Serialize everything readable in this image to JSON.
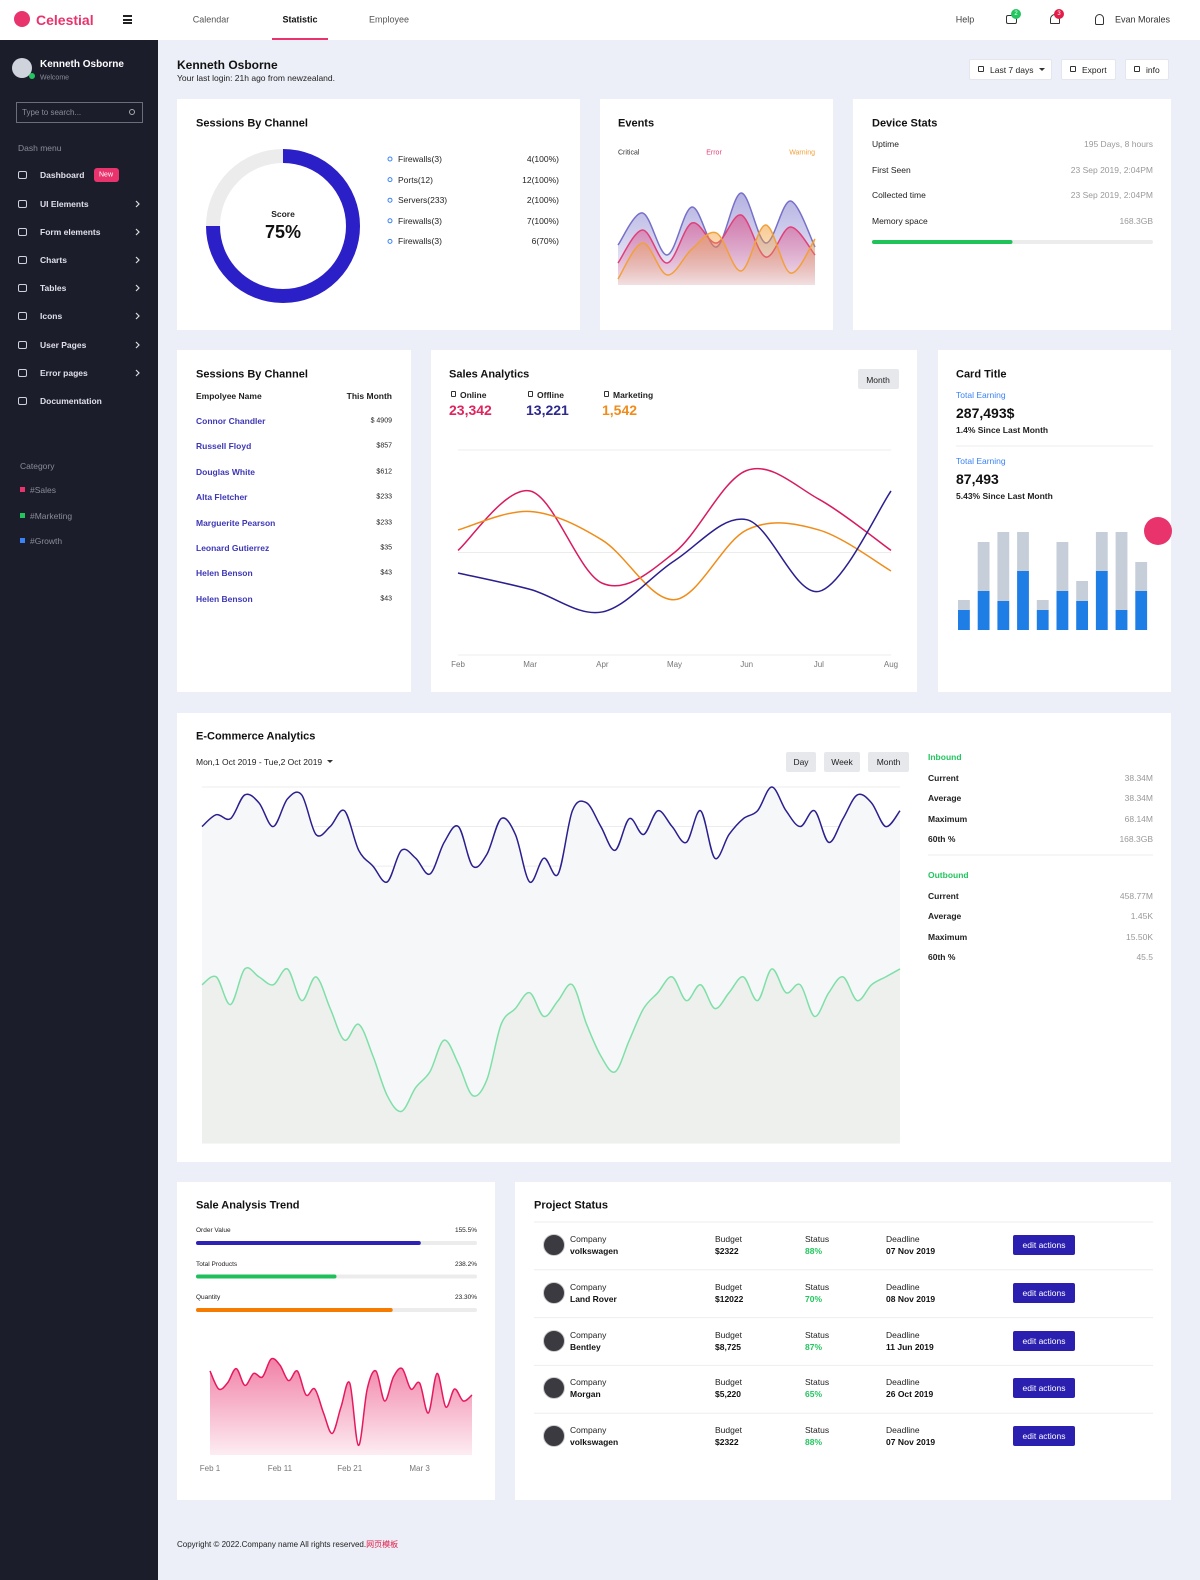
{
  "topbar": {
    "brand": "Celestial",
    "nav": [
      "Calendar",
      "Statistic",
      "Employee"
    ],
    "help": "Help",
    "messages_badge": 2,
    "notifications_badge": 3,
    "user": "Evan Morales"
  },
  "sidebar": {
    "user": "Kenneth Osborne",
    "subtitle": "Welcome",
    "search_placeholder": "Type to search...",
    "menu_title": "Dash menu",
    "menu": [
      {
        "label": "Dashboard",
        "badge": "New"
      },
      {
        "label": "UI Elements"
      },
      {
        "label": "Form elements"
      },
      {
        "label": "Charts"
      },
      {
        "label": "Tables"
      },
      {
        "label": "Icons"
      },
      {
        "label": "User Pages"
      },
      {
        "label": "Error pages"
      },
      {
        "label": "Documentation"
      }
    ],
    "category_title": "Category",
    "categories": [
      {
        "label": "#Sales",
        "color": "#e8336d"
      },
      {
        "label": "#Marketing",
        "color": "#22c55e"
      },
      {
        "label": "#Growth",
        "color": "#3b82f6"
      }
    ]
  },
  "header": {
    "name": "Kenneth Osborne",
    "last_login": "Your last login: 21h ago from newzealand.",
    "range": "Last 7 days",
    "export": "Export",
    "info": "info"
  },
  "sessions": {
    "title": "Sessions By Channel",
    "score_label": "Score",
    "score": {
      "value": 75,
      "label": "75%"
    },
    "color": "#2b1fc8",
    "channels": [
      {
        "name": "Firewalls(3)",
        "value": "4(100%)"
      },
      {
        "name": "Ports(12)",
        "value": "12(100%)"
      },
      {
        "name": "Servers(233)",
        "value": "2(100%)"
      },
      {
        "name": "Firewalls(3)",
        "value": "7(100%)"
      },
      {
        "name": "Firewalls(3)",
        "value": "6(70%)"
      }
    ]
  },
  "events": {
    "title": "Events",
    "chart": {
      "type": "area",
      "ylim": [
        0,
        100
      ],
      "series": [
        {
          "name": "Critical",
          "color": "#7670c9",
          "values": [
            40,
            72,
            30,
            78,
            38,
            92,
            42,
            84,
            38
          ]
        },
        {
          "name": "Error",
          "color": "#e0407a",
          "values": [
            22,
            55,
            22,
            62,
            42,
            70,
            28,
            58,
            30
          ]
        },
        {
          "name": "Warning",
          "color": "#f2a03a",
          "values": [
            6,
            42,
            10,
            36,
            52,
            14,
            60,
            12,
            46
          ]
        }
      ]
    }
  },
  "device_stats": {
    "title": "Device Stats",
    "rows": [
      {
        "label": "Uptime",
        "value": "195 Days, 8 hours"
      },
      {
        "label": "First Seen",
        "value": "23 Sep 2019, 2:04PM"
      },
      {
        "label": "Collected time",
        "value": "23 Sep 2019, 2:04PM"
      },
      {
        "label": "Memory space",
        "value": "168.3GB"
      }
    ],
    "memory_used": 50,
    "color": "#1fc35a"
  },
  "employees": {
    "title": "Sessions By Channel",
    "columns": [
      "Empolyee Name",
      "This Month"
    ],
    "rows": [
      {
        "name": "Connor Chandler",
        "value": "$ 4909"
      },
      {
        "name": "Russell Floyd",
        "value": "$857"
      },
      {
        "name": "Douglas White",
        "value": "$612"
      },
      {
        "name": "Alta Fletcher",
        "value": "$233"
      },
      {
        "name": "Marguerite Pearson",
        "value": "$233"
      },
      {
        "name": "Leonard Gutierrez",
        "value": "$35"
      },
      {
        "name": "Helen Benson",
        "value": "$43"
      },
      {
        "name": "Helen Benson",
        "value": "$43"
      }
    ]
  },
  "sales_analytics": {
    "title": "Sales Analytics",
    "button": "Month",
    "stats": [
      {
        "label": "Online",
        "value": "23,342",
        "color": "#e0245e"
      },
      {
        "label": "Offline",
        "value": "13,221",
        "color": "#2d2a8c"
      },
      {
        "label": "Marketing",
        "value": "1,542",
        "color": "#f08c1a"
      }
    ],
    "chart": {
      "type": "line",
      "categories": [
        "Feb",
        "Mar",
        "Apr",
        "May",
        "Jun",
        "Jul",
        "Aug"
      ],
      "ylim": [
        0,
        100
      ],
      "yticks": [
        0,
        50,
        100
      ],
      "series": [
        {
          "color": "#d81b60",
          "values": [
            51,
            80,
            35,
            50,
            90,
            76,
            51
          ]
        },
        {
          "color": "#f08c1a",
          "values": [
            61,
            70,
            56,
            27,
            61,
            61,
            41
          ]
        },
        {
          "color": "#2a1f8f",
          "values": [
            40,
            32,
            21,
            46,
            66,
            31,
            80
          ]
        }
      ]
    }
  },
  "card_title": {
    "title": "Card Title",
    "earnings": [
      {
        "label": "Total Earning",
        "value": "287,493$",
        "change": "1.4% Since Last Month"
      },
      {
        "label": "Total Earning",
        "value": "87,493",
        "change": "5.43% Since Last Month"
      }
    ],
    "chart": {
      "type": "bar",
      "ylim": [
        0,
        100
      ],
      "series": [
        {
          "color": "#1e7ee6",
          "values": [
            20,
            39,
            29,
            59,
            20,
            39,
            29,
            59,
            20,
            39
          ]
        },
        {
          "color": "#c5ced9",
          "values": [
            10,
            49,
            69,
            39,
            10,
            49,
            20,
            39,
            78,
            29
          ]
        }
      ]
    }
  },
  "ecommerce": {
    "title": "E-Commerce Analytics",
    "date_range": "Mon,1 Oct 2019 - Tue,2 Oct 2019",
    "buttons": [
      "Day",
      "Week",
      "Month"
    ],
    "chart": {
      "type": "line",
      "ylim": [
        0,
        90
      ],
      "yticks": [
        0,
        10,
        20,
        30,
        40,
        50,
        60,
        70,
        80,
        90
      ],
      "series": [
        {
          "color": "#2a1f8f",
          "fill": "#f6f7f9",
          "values": [
            80,
            83,
            82,
            88,
            86,
            80,
            87,
            88,
            78,
            80,
            84,
            74,
            70,
            66,
            74,
            72,
            68,
            76,
            80,
            70,
            73,
            82,
            78,
            66,
            72,
            68,
            84,
            86,
            80,
            74,
            82,
            78,
            84,
            80,
            76,
            84,
            72,
            78,
            82,
            84,
            90,
            84,
            80,
            84,
            76,
            82,
            88,
            86,
            80,
            84
          ]
        },
        {
          "color": "#7ee0a8",
          "fill": "#edf0ed",
          "values": [
            40,
            42,
            35,
            44,
            42,
            40,
            44,
            36,
            42,
            34,
            26,
            30,
            22,
            12,
            8,
            14,
            18,
            26,
            20,
            12,
            16,
            30,
            34,
            38,
            32,
            36,
            40,
            30,
            22,
            18,
            26,
            34,
            38,
            42,
            36,
            40,
            34,
            38,
            42,
            36,
            44,
            38,
            40,
            32,
            38,
            42,
            36,
            40,
            42,
            44
          ]
        }
      ]
    },
    "inbound": {
      "title": "Inbound",
      "rows": [
        {
          "label": "Current",
          "value": "38.34M"
        },
        {
          "label": "Average",
          "value": "38.34M"
        },
        {
          "label": "Maximum",
          "value": "68.14M"
        },
        {
          "label": "60th %",
          "value": "168.3GB"
        }
      ]
    },
    "outbound": {
      "title": "Outbound",
      "rows": [
        {
          "label": "Current",
          "value": "458.77M"
        },
        {
          "label": "Average",
          "value": "1.45K"
        },
        {
          "label": "Maximum",
          "value": "15.50K"
        },
        {
          "label": "60th %",
          "value": "45.5"
        }
      ]
    }
  },
  "sale_trend": {
    "title": "Sale Analysis Trend",
    "metrics": [
      {
        "label": "Order Value",
        "value": "155.5%",
        "fill": 80,
        "color": "#2d22b5"
      },
      {
        "label": "Total Products",
        "value": "238.2%",
        "fill": 50,
        "color": "#1fbf5c"
      },
      {
        "label": "Quantity",
        "value": "23.30%",
        "fill": 70,
        "color": "#f57c00"
      }
    ],
    "chart": {
      "type": "area",
      "color": "#e6195e",
      "ylim": [
        0,
        100
      ],
      "categories": [
        "Feb 1",
        null,
        null,
        null,
        null,
        null,
        null,
        null,
        "Feb 11",
        null,
        null,
        null,
        null,
        null,
        null,
        null,
        "Feb 21",
        null,
        null,
        null,
        null,
        null,
        null,
        null,
        "Mar 3",
        null,
        null,
        null,
        null,
        null,
        null
      ],
      "values": [
        70,
        55,
        60,
        72,
        58,
        68,
        65,
        80,
        75,
        62,
        70,
        50,
        55,
        35,
        18,
        40,
        60,
        8,
        55,
        70,
        45,
        65,
        72,
        55,
        60,
        35,
        68,
        40,
        55,
        45,
        50
      ]
    }
  },
  "project_status": {
    "title": "Project Status",
    "columns": {
      "company": "Company",
      "budget": "Budget",
      "status": "Status",
      "deadline": "Deadline"
    },
    "action": "edit actions",
    "rows": [
      {
        "company": "volkswagen",
        "budget": "$2322",
        "status": "88%",
        "deadline": "07 Nov 2019"
      },
      {
        "company": "Land Rover",
        "budget": "$12022",
        "status": "70%",
        "deadline": "08 Nov 2019"
      },
      {
        "company": "Bentley",
        "budget": "$8,725",
        "status": "87%",
        "deadline": "11 Jun 2019"
      },
      {
        "company": "Morgan",
        "budget": "$5,220",
        "status": "65%",
        "deadline": "26 Oct 2019"
      },
      {
        "company": "volkswagen",
        "budget": "$2322",
        "status": "88%",
        "deadline": "07 Nov 2019"
      }
    ]
  },
  "footer": {
    "text": "Copyright © 2022.Company name All rights reserved.",
    "link": "网页模板"
  }
}
